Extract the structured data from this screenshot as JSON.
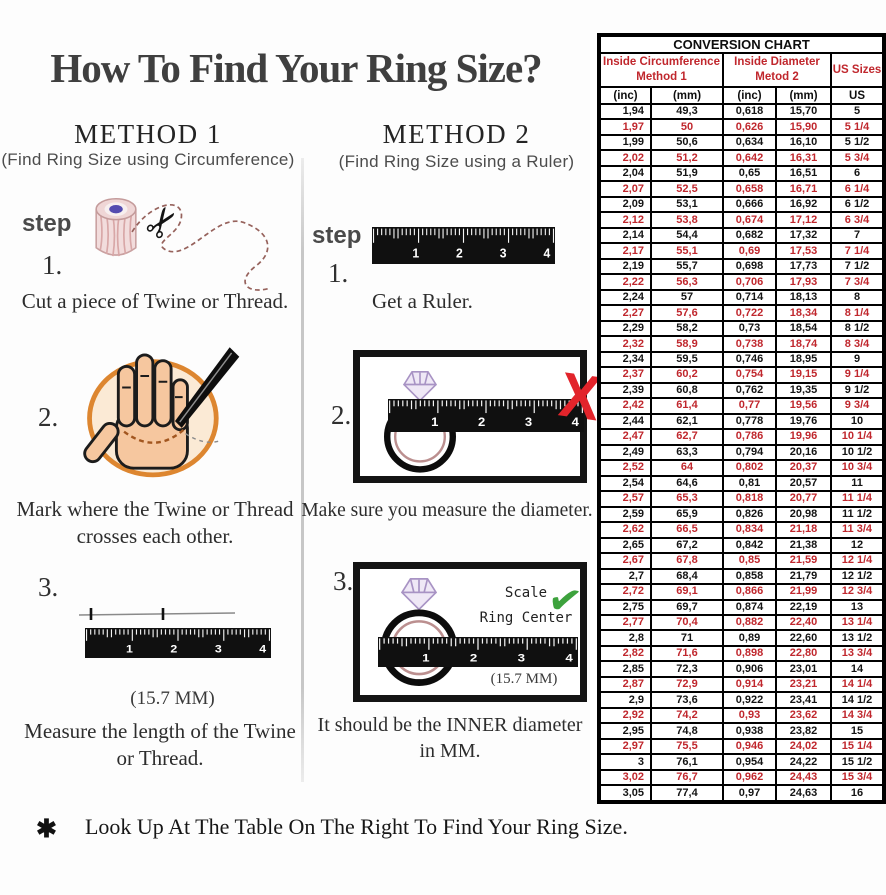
{
  "title": "How To Find Your Ring Size?",
  "method1": {
    "heading": "METHOD 1",
    "subtitle": "(Find Ring Size using Circumference)",
    "step_label": "step",
    "step1": {
      "num": "1.",
      "caption": "Cut a piece of  Twine or Thread."
    },
    "step2": {
      "num": "2.",
      "caption": "Mark where the Twine or Thread crosses each other."
    },
    "step3": {
      "num": "3.",
      "note": "(15.7 MM)",
      "caption": "Measure the length of the Twine or Thread."
    }
  },
  "method2": {
    "heading": "METHOD 2",
    "subtitle": "(Find Ring Size using a Ruler)",
    "step_label": "step",
    "step1": {
      "num": "1.",
      "caption": "Get a Ruler."
    },
    "step2": {
      "num": "2.",
      "caption": "Make sure you measure the diameter.",
      "x_mark": "X"
    },
    "step3": {
      "num": "3.",
      "caption": "It should be the INNER diameter in MM.",
      "scale_line1": "Scale",
      "scale_line2": "Ring Center",
      "note": "(15.7 MM)",
      "check_mark": "✔"
    }
  },
  "ruler_numbers": [
    "1",
    "2",
    "3",
    "4"
  ],
  "footnote": {
    "marker": "✱",
    "text": "Look Up At The Table On The Right To Find Your Ring Size."
  },
  "colors": {
    "accent_red": "#c0272d",
    "x_red": "#e2242b",
    "check_green": "#3da23d"
  },
  "table": {
    "title": "CONVERSION CHART",
    "groups": [
      {
        "line1": "Inside Circumference",
        "line2": "Method 1",
        "colspan": 2
      },
      {
        "line1": "Inside Diameter",
        "line2": "Metod 2",
        "colspan": 2
      },
      {
        "line1": "US Sizes",
        "line2": "",
        "colspan": 1
      }
    ],
    "units": [
      "(inc)",
      "(mm)",
      "(inc)",
      "(mm)",
      "US"
    ],
    "rows": [
      [
        "1,94",
        "49,3",
        "0,618",
        "15,70",
        "5"
      ],
      [
        "1,97",
        "50",
        "0,626",
        "15,90",
        "5 1/4"
      ],
      [
        "1,99",
        "50,6",
        "0,634",
        "16,10",
        "5 1/2"
      ],
      [
        "2,02",
        "51,2",
        "0,642",
        "16,31",
        "5 3/4"
      ],
      [
        "2,04",
        "51,9",
        "0,65",
        "16,51",
        "6"
      ],
      [
        "2,07",
        "52,5",
        "0,658",
        "16,71",
        "6 1/4"
      ],
      [
        "2,09",
        "53,1",
        "0,666",
        "16,92",
        "6 1/2"
      ],
      [
        "2,12",
        "53,8",
        "0,674",
        "17,12",
        "6 3/4"
      ],
      [
        "2,14",
        "54,4",
        "0,682",
        "17,32",
        "7"
      ],
      [
        "2,17",
        "55,1",
        "0,69",
        "17,53",
        "7 1/4"
      ],
      [
        "2,19",
        "55,7",
        "0,698",
        "17,73",
        "7 1/2"
      ],
      [
        "2,22",
        "56,3",
        "0,706",
        "17,93",
        "7 3/4"
      ],
      [
        "2,24",
        "57",
        "0,714",
        "18,13",
        "8"
      ],
      [
        "2,27",
        "57,6",
        "0,722",
        "18,34",
        "8 1/4"
      ],
      [
        "2,29",
        "58,2",
        "0,73",
        "18,54",
        "8 1/2"
      ],
      [
        "2,32",
        "58,9",
        "0,738",
        "18,74",
        "8 3/4"
      ],
      [
        "2,34",
        "59,5",
        "0,746",
        "18,95",
        "9"
      ],
      [
        "2,37",
        "60,2",
        "0,754",
        "19,15",
        "9 1/4"
      ],
      [
        "2,39",
        "60,8",
        "0,762",
        "19,35",
        "9 1/2"
      ],
      [
        "2,42",
        "61,4",
        "0,77",
        "19,56",
        "9 3/4"
      ],
      [
        "2,44",
        "62,1",
        "0,778",
        "19,76",
        "10"
      ],
      [
        "2,47",
        "62,7",
        "0,786",
        "19,96",
        "10 1/4"
      ],
      [
        "2,49",
        "63,3",
        "0,794",
        "20,16",
        "10 1/2"
      ],
      [
        "2,52",
        "64",
        "0,802",
        "20,37",
        "10 3/4"
      ],
      [
        "2,54",
        "64,6",
        "0,81",
        "20,57",
        "11"
      ],
      [
        "2,57",
        "65,3",
        "0,818",
        "20,77",
        "11 1/4"
      ],
      [
        "2,59",
        "65,9",
        "0,826",
        "20,98",
        "11 1/2"
      ],
      [
        "2,62",
        "66,5",
        "0,834",
        "21,18",
        "11 3/4"
      ],
      [
        "2,65",
        "67,2",
        "0,842",
        "21,38",
        "12"
      ],
      [
        "2,67",
        "67,8",
        "0,85",
        "21,59",
        "12 1/4"
      ],
      [
        "2,7",
        "68,4",
        "0,858",
        "21,79",
        "12 1/2"
      ],
      [
        "2,72",
        "69,1",
        "0,866",
        "21,99",
        "12 3/4"
      ],
      [
        "2,75",
        "69,7",
        "0,874",
        "22,19",
        "13"
      ],
      [
        "2,77",
        "70,4",
        "0,882",
        "22,40",
        "13 1/4"
      ],
      [
        "2,8",
        "71",
        "0,89",
        "22,60",
        "13 1/2"
      ],
      [
        "2,82",
        "71,6",
        "0,898",
        "22,80",
        "13 3/4"
      ],
      [
        "2,85",
        "72,3",
        "0,906",
        "23,01",
        "14"
      ],
      [
        "2,87",
        "72,9",
        "0,914",
        "23,21",
        "14 1/4"
      ],
      [
        "2,9",
        "73,6",
        "0,922",
        "23,41",
        "14 1/2"
      ],
      [
        "2,92",
        "74,2",
        "0,93",
        "23,62",
        "14 3/4"
      ],
      [
        "2,95",
        "74,8",
        "0,938",
        "23,82",
        "15"
      ],
      [
        "2,97",
        "75,5",
        "0,946",
        "24,02",
        "15 1/4"
      ],
      [
        "3",
        "76,1",
        "0,954",
        "24,22",
        "15 1/2"
      ],
      [
        "3,02",
        "76,7",
        "0,962",
        "24,43",
        "15 3/4"
      ],
      [
        "3,05",
        "77,4",
        "0,97",
        "24,63",
        "16"
      ]
    ]
  }
}
